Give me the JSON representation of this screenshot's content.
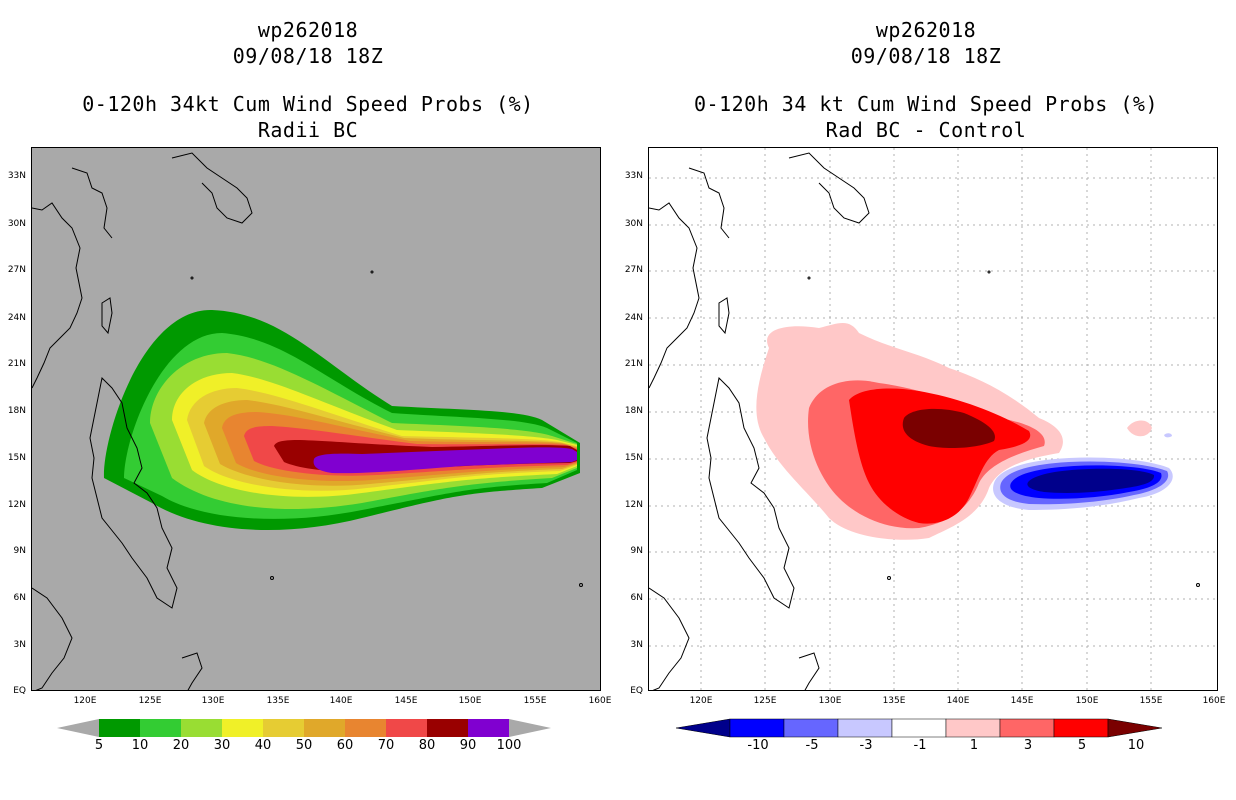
{
  "left": {
    "title1": "wp262018",
    "title2": "09/08/18 18Z",
    "title3": "0-120h 34kt Cum Wind Speed Probs (%)",
    "title4": "Radii BC",
    "background": "#a9a9a9",
    "colorbar": {
      "colors": [
        "#009900",
        "#33cc33",
        "#99dd33",
        "#f0f028",
        "#e6cc33",
        "#e0a82a",
        "#e88530",
        "#f04848",
        "#990000",
        "#8000d0"
      ],
      "labels": [
        "5",
        "10",
        "20",
        "30",
        "40",
        "50",
        "60",
        "70",
        "80",
        "90",
        "100"
      ]
    }
  },
  "right": {
    "title1": "wp262018",
    "title2": "09/08/18 18Z",
    "title3": "0-120h 34 kt Cum Wind Speed Probs (%)",
    "title4": "Rad BC - Control",
    "background": "#ffffff",
    "colorbar": {
      "colors": [
        "#00008b",
        "#0000ff",
        "#6666ff",
        "#c8c8ff",
        "#ffffff",
        "#ffc8c8",
        "#ff6666",
        "#ff0000",
        "#7a0000"
      ],
      "labels": [
        "-10",
        "-5",
        "-3",
        "-1",
        "1",
        "3",
        "5",
        "10"
      ]
    }
  },
  "axes": {
    "lat_labels": [
      "33N",
      "30N",
      "27N",
      "24N",
      "21N",
      "18N",
      "15N",
      "12N",
      "9N",
      "6N",
      "3N",
      "EQ"
    ],
    "lon_labels": [
      "120E",
      "125E",
      "130E",
      "135E",
      "140E",
      "145E",
      "150E",
      "155E",
      "160E"
    ]
  }
}
